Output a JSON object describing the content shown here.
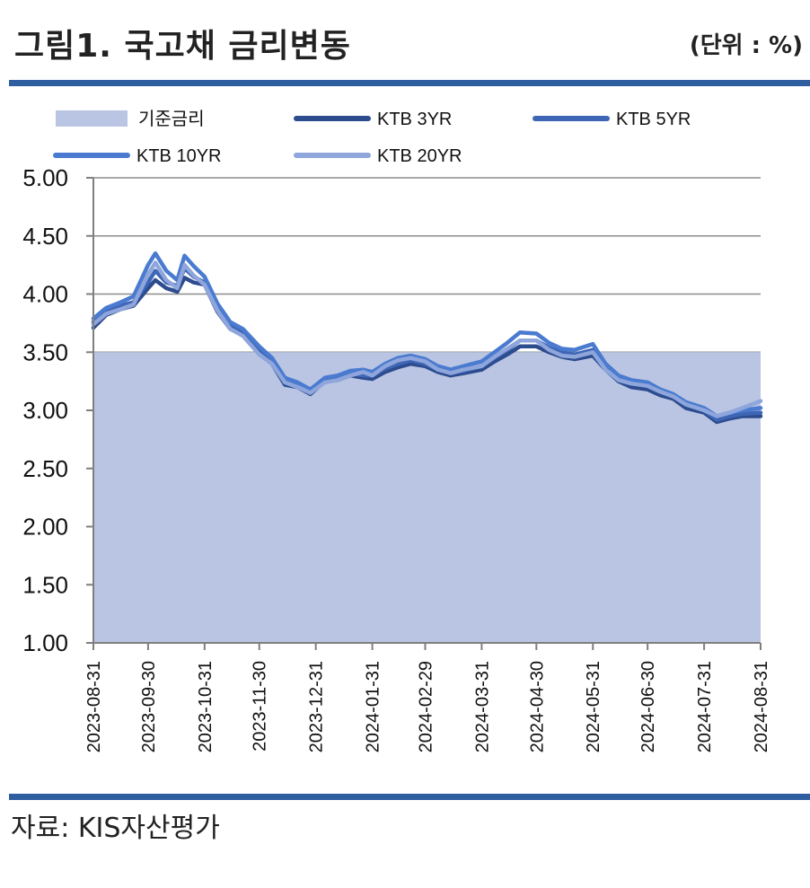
{
  "header": {
    "title": "그림1. 국고채 금리변동",
    "unit": "(단위 : %)"
  },
  "footer": {
    "source": "자료: KIS자산평가"
  },
  "chart_data": {
    "type": "line",
    "title": "그림1. 국고채 금리변동",
    "ylim": [
      1.0,
      5.0
    ],
    "y_ticks": [
      "5.00",
      "4.50",
      "4.00",
      "3.50",
      "3.00",
      "2.50",
      "2.00",
      "1.50",
      "1.00"
    ],
    "x_ticks": [
      "2023-08-31",
      "2023-09-30",
      "2023-10-31",
      "2023-11-30",
      "2023-12-31",
      "2024-01-31",
      "2024-02-29",
      "2024-03-31",
      "2024-04-30",
      "2024-05-31",
      "2024-06-30",
      "2024-07-31",
      "2024-08-31"
    ],
    "grid": "horizontal",
    "legend": "top",
    "dates": [
      "2023-08-31",
      "2023-09-07",
      "2023-09-15",
      "2023-09-22",
      "2023-09-30",
      "2023-10-04",
      "2023-10-10",
      "2023-10-16",
      "2023-10-20",
      "2023-10-25",
      "2023-10-31",
      "2023-11-07",
      "2023-11-14",
      "2023-11-21",
      "2023-11-30",
      "2023-12-07",
      "2023-12-14",
      "2023-12-21",
      "2023-12-28",
      "2024-01-05",
      "2024-01-12",
      "2024-01-19",
      "2024-01-26",
      "2024-01-31",
      "2024-02-07",
      "2024-02-14",
      "2024-02-21",
      "2024-02-29",
      "2024-03-07",
      "2024-03-14",
      "2024-03-21",
      "2024-03-31",
      "2024-04-07",
      "2024-04-14",
      "2024-04-21",
      "2024-04-30",
      "2024-05-07",
      "2024-05-14",
      "2024-05-21",
      "2024-05-31",
      "2024-06-07",
      "2024-06-14",
      "2024-06-21",
      "2024-06-30",
      "2024-07-07",
      "2024-07-14",
      "2024-07-21",
      "2024-07-31",
      "2024-08-07",
      "2024-08-14",
      "2024-08-21",
      "2024-08-31"
    ],
    "series": [
      {
        "name": "기준금리",
        "kind": "area",
        "color": "#b9c5e2",
        "values": [
          3.5,
          3.5,
          3.5,
          3.5,
          3.5,
          3.5,
          3.5,
          3.5,
          3.5,
          3.5,
          3.5,
          3.5,
          3.5,
          3.5,
          3.5,
          3.5,
          3.5,
          3.5,
          3.5,
          3.5,
          3.5,
          3.5,
          3.5,
          3.5,
          3.5,
          3.5,
          3.5,
          3.5,
          3.5,
          3.5,
          3.5,
          3.5,
          3.5,
          3.5,
          3.5,
          3.5,
          3.5,
          3.5,
          3.5,
          3.5,
          3.5,
          3.5,
          3.5,
          3.5,
          3.5,
          3.5,
          3.5,
          3.5,
          3.5,
          3.5,
          3.5,
          3.5
        ]
      },
      {
        "name": "KTB 3YR",
        "kind": "line",
        "color": "#2d4c8f",
        "values": [
          3.71,
          3.82,
          3.87,
          3.9,
          4.05,
          4.12,
          4.05,
          4.02,
          4.14,
          4.1,
          4.08,
          3.85,
          3.7,
          3.65,
          3.5,
          3.4,
          3.22,
          3.2,
          3.14,
          3.25,
          3.26,
          3.3,
          3.28,
          3.27,
          3.33,
          3.37,
          3.4,
          3.38,
          3.33,
          3.3,
          3.32,
          3.35,
          3.42,
          3.48,
          3.55,
          3.55,
          3.5,
          3.46,
          3.44,
          3.47,
          3.35,
          3.25,
          3.2,
          3.18,
          3.13,
          3.1,
          3.02,
          2.98,
          2.9,
          2.93,
          2.95,
          2.95
        ]
      },
      {
        "name": "KTB 5YR",
        "kind": "line",
        "color": "#3f66b5",
        "values": [
          3.76,
          3.85,
          3.9,
          3.93,
          4.1,
          4.2,
          4.1,
          4.07,
          4.22,
          4.15,
          4.1,
          3.88,
          3.73,
          3.68,
          3.52,
          3.42,
          3.25,
          3.22,
          3.16,
          3.26,
          3.28,
          3.32,
          3.3,
          3.3,
          3.36,
          3.4,
          3.43,
          3.4,
          3.35,
          3.32,
          3.34,
          3.38,
          3.45,
          3.52,
          3.6,
          3.6,
          3.54,
          3.5,
          3.48,
          3.52,
          3.38,
          3.28,
          3.24,
          3.21,
          3.16,
          3.12,
          3.05,
          3.0,
          2.92,
          2.95,
          2.97,
          2.98
        ]
      },
      {
        "name": "KTB 10YR",
        "kind": "line",
        "color": "#4a7bd0",
        "values": [
          3.79,
          3.88,
          3.93,
          3.98,
          4.25,
          4.35,
          4.2,
          4.12,
          4.33,
          4.24,
          4.15,
          3.92,
          3.76,
          3.7,
          3.55,
          3.45,
          3.28,
          3.24,
          3.18,
          3.28,
          3.3,
          3.34,
          3.35,
          3.33,
          3.4,
          3.45,
          3.47,
          3.44,
          3.38,
          3.35,
          3.38,
          3.42,
          3.5,
          3.58,
          3.67,
          3.66,
          3.58,
          3.53,
          3.52,
          3.57,
          3.4,
          3.3,
          3.26,
          3.24,
          3.18,
          3.14,
          3.07,
          3.02,
          2.95,
          2.98,
          3.0,
          3.02
        ]
      },
      {
        "name": "KTB 20YR",
        "kind": "line",
        "color": "#8fa6dc",
        "values": [
          3.74,
          3.83,
          3.87,
          3.91,
          4.17,
          4.27,
          4.12,
          4.05,
          4.25,
          4.16,
          4.08,
          3.86,
          3.7,
          3.64,
          3.48,
          3.4,
          3.24,
          3.2,
          3.15,
          3.24,
          3.26,
          3.3,
          3.33,
          3.3,
          3.38,
          3.43,
          3.45,
          3.42,
          3.35,
          3.32,
          3.35,
          3.38,
          3.46,
          3.53,
          3.6,
          3.6,
          3.52,
          3.47,
          3.46,
          3.5,
          3.35,
          3.26,
          3.23,
          3.21,
          3.16,
          3.12,
          3.05,
          3.0,
          2.95,
          2.98,
          3.02,
          3.08
        ]
      }
    ]
  }
}
